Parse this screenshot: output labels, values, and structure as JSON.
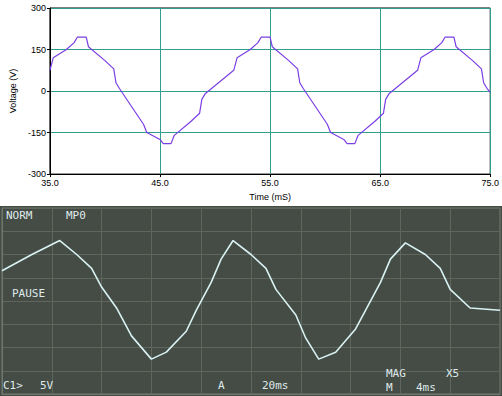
{
  "chart_data": [
    {
      "type": "line",
      "xlabel": "Time (mS)",
      "ylabel": "Voltage (V)",
      "xlim": [
        35,
        75
      ],
      "xticks": [
        {
          "value": 35,
          "label": "35.0"
        },
        {
          "value": 45,
          "label": "45.0"
        },
        {
          "value": 55,
          "label": "55.0"
        },
        {
          "value": 65,
          "label": "65.0"
        },
        {
          "value": 75,
          "label": "75.0"
        }
      ],
      "ylim": [
        -300,
        300
      ],
      "yticks": [
        -300,
        -150,
        0,
        150,
        300
      ],
      "grid": true,
      "color": "#7b3fe4",
      "x": [
        35.0,
        35.3,
        36.5,
        37.2,
        37.5,
        38.3,
        38.5,
        40.0,
        40.8,
        41.0,
        41.3,
        43.5,
        43.8,
        45.0,
        45.3,
        46.0,
        46.3,
        47.8,
        48.6,
        48.8,
        49.1,
        51.7,
        52.0,
        53.2,
        53.9,
        54.2,
        55.0,
        55.2,
        56.7,
        57.5,
        57.7,
        58.0,
        60.2,
        60.5,
        61.7,
        62.0,
        62.7,
        63.0,
        64.5,
        65.3,
        65.5,
        65.8,
        68.4,
        68.7,
        69.9,
        70.6,
        70.9,
        71.7,
        71.9,
        73.4,
        74.2,
        74.4,
        74.7,
        75.0
      ],
      "values": [
        75,
        120,
        150,
        175,
        195,
        195,
        160,
        110,
        80,
        30,
        10,
        -120,
        -150,
        -175,
        -190,
        -190,
        -160,
        -110,
        -80,
        -30,
        -10,
        75,
        120,
        150,
        175,
        195,
        195,
        160,
        110,
        80,
        30,
        10,
        -120,
        -150,
        -175,
        -190,
        -190,
        -160,
        -110,
        -80,
        -30,
        -10,
        75,
        120,
        150,
        175,
        195,
        195,
        160,
        110,
        80,
        30,
        10,
        -5
      ]
    },
    {
      "type": "line",
      "xlim": [
        0,
        10
      ],
      "xticks": [
        0,
        1,
        2,
        3,
        4,
        5,
        6,
        7,
        8,
        9,
        10
      ],
      "ylim": [
        -4,
        4
      ],
      "yticks": [
        -4,
        -3,
        -2,
        -1,
        0,
        1,
        2,
        3,
        4
      ],
      "grid": true,
      "tick_labels": false,
      "color": "#d8f2f2",
      "annotations": [
        "NORM",
        "MP0",
        "PAUSE",
        "C1>",
        "5V",
        "A",
        "20ms",
        "MAG",
        "X5",
        "M",
        "4ms"
      ],
      "x": [
        0,
        0.6,
        1.16,
        1.5,
        1.8,
        2.0,
        2.3,
        2.6,
        3.0,
        3.3,
        3.7,
        3.9,
        4.2,
        4.4,
        4.64,
        5.0,
        5.3,
        5.5,
        5.9,
        6.1,
        6.36,
        6.7,
        7.1,
        7.3,
        7.6,
        7.8,
        8.1,
        8.5,
        8.8,
        9.0,
        9.4,
        10
      ],
      "values": [
        1.3,
        2.0,
        2.6,
        2.0,
        1.4,
        0.6,
        -0.3,
        -1.5,
        -2.5,
        -2.2,
        -1.3,
        -0.4,
        0.8,
        1.8,
        2.6,
        2.0,
        1.4,
        0.5,
        -0.6,
        -1.6,
        -2.5,
        -2.2,
        -1.2,
        -0.4,
        0.8,
        1.8,
        2.5,
        2.0,
        1.4,
        0.5,
        -0.3,
        -0.4
      ]
    }
  ]
}
